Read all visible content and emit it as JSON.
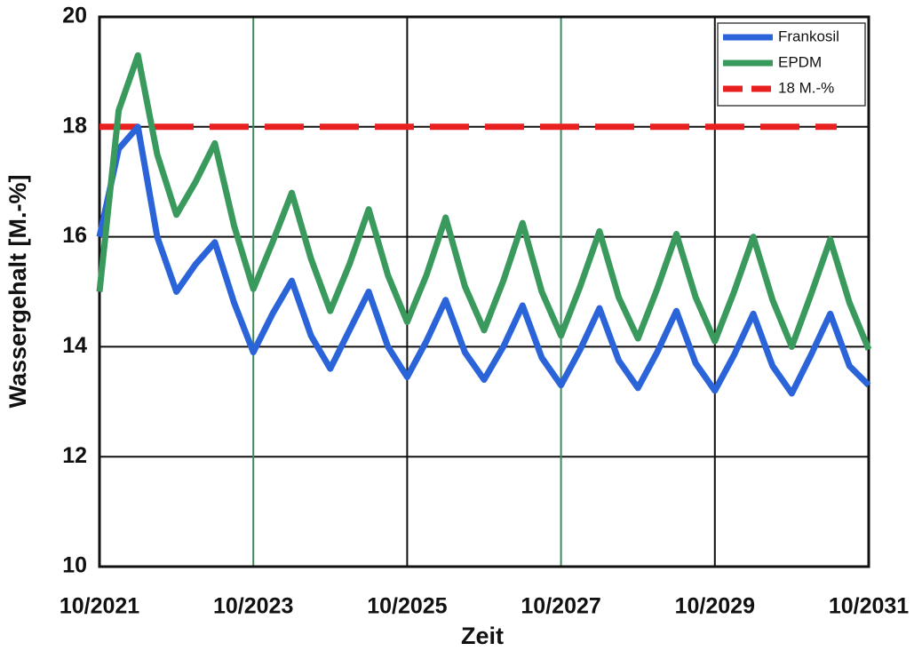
{
  "chart_data": {
    "type": "line",
    "ylabel": "Wassergehalt [M.-%]",
    "xlabel": "Zeit",
    "x": [
      "10/2021",
      "01/2022",
      "04/2022",
      "07/2022",
      "10/2022",
      "01/2023",
      "04/2023",
      "07/2023",
      "10/2023",
      "01/2024",
      "04/2024",
      "07/2024",
      "10/2024",
      "01/2025",
      "04/2025",
      "07/2025",
      "10/2025",
      "01/2026",
      "04/2026",
      "07/2026",
      "10/2026",
      "01/2027",
      "04/2027",
      "07/2027",
      "10/2027",
      "01/2028",
      "04/2028",
      "07/2028",
      "10/2028",
      "01/2029",
      "04/2029",
      "07/2029",
      "10/2029",
      "01/2030",
      "04/2030",
      "07/2030",
      "10/2030",
      "01/2031",
      "04/2031",
      "07/2031",
      "10/2031"
    ],
    "series": [
      {
        "name": "Frankosil",
        "color": "#2a64d8",
        "values": [
          16.0,
          17.6,
          18.0,
          16.0,
          15.0,
          15.5,
          15.9,
          14.8,
          13.9,
          14.6,
          15.2,
          14.2,
          13.6,
          14.3,
          15.0,
          14.0,
          13.45,
          14.1,
          14.85,
          13.9,
          13.4,
          14.0,
          14.75,
          13.8,
          13.3,
          13.95,
          14.7,
          13.75,
          13.25,
          13.9,
          14.65,
          13.7,
          13.2,
          13.85,
          14.6,
          13.65,
          13.15,
          13.85,
          14.6,
          13.65,
          13.3
        ]
      },
      {
        "name": "EPDM",
        "color": "#3a9a5e",
        "values": [
          15.0,
          18.3,
          19.3,
          17.5,
          16.4,
          17.0,
          17.7,
          16.2,
          15.05,
          15.9,
          16.8,
          15.6,
          14.65,
          15.5,
          16.5,
          15.3,
          14.45,
          15.3,
          16.35,
          15.1,
          14.3,
          15.2,
          16.25,
          15.0,
          14.2,
          15.1,
          16.1,
          14.9,
          14.15,
          15.05,
          16.05,
          14.9,
          14.1,
          15.0,
          16.0,
          14.85,
          14.0,
          14.95,
          15.95,
          14.8,
          13.95
        ]
      }
    ],
    "hlines": [
      {
        "name": "18 M.-%",
        "value": 18,
        "color": "#e82020"
      }
    ],
    "xlim": [
      "10/2021",
      "10/2031"
    ],
    "xticks": [
      "10/2021",
      "10/2023",
      "10/2025",
      "10/2027",
      "10/2029",
      "10/2031"
    ],
    "ylim": [
      10,
      20
    ],
    "yticks": [
      10,
      12,
      14,
      16,
      18,
      20
    ],
    "grid": true,
    "legend": "top-right"
  }
}
